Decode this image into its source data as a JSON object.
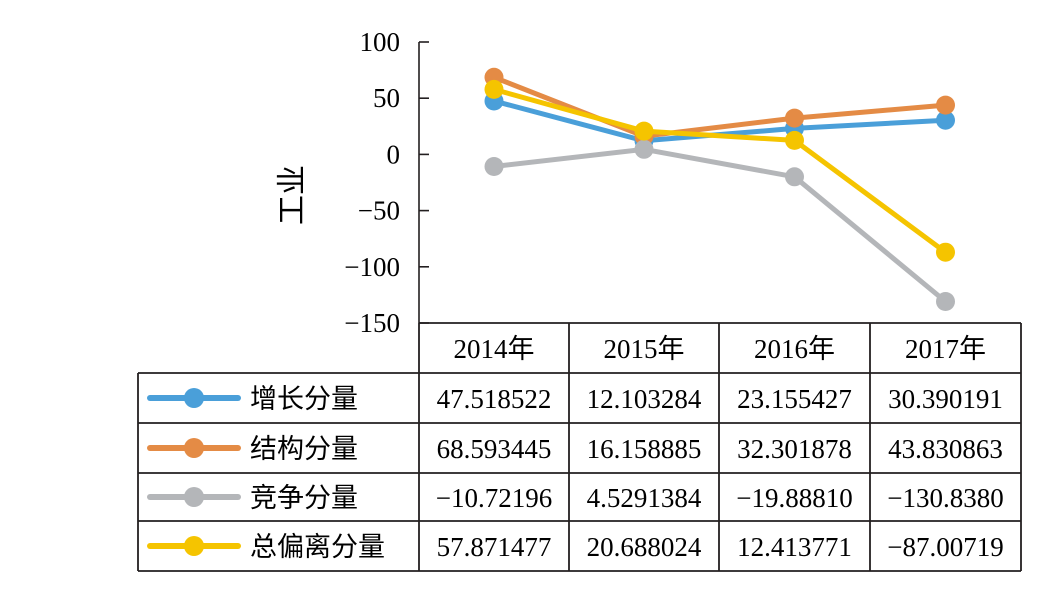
{
  "chart_data": {
    "type": "line",
    "ylabel": "工业",
    "ylim": [
      -150,
      100
    ],
    "yticks": [
      100,
      50,
      0,
      -50,
      -100,
      -150
    ],
    "ytick_labels": [
      "100",
      "50",
      "0",
      "−50",
      "−100",
      "−150"
    ],
    "categories": [
      "2014年",
      "2015年",
      "2016年",
      "2017年"
    ],
    "grid": false,
    "legend": "data-table-left",
    "series": [
      {
        "name": "增长分量",
        "color": "#4a9fd9",
        "values": [
          47.518522,
          12.103284,
          23.155427,
          30.390191
        ],
        "labels": [
          "47.518522",
          "12.103284",
          "23.155427",
          "30.390191"
        ]
      },
      {
        "name": "结构分量",
        "color": "#e48b45",
        "values": [
          68.593445,
          16.158885,
          32.301878,
          43.830863
        ],
        "labels": [
          "68.593445",
          "16.158885",
          "32.301878",
          "43.830863"
        ]
      },
      {
        "name": "竞争分量",
        "color": "#b4b6b9",
        "values": [
          -10.72196,
          4.5291384,
          -19.8881,
          -130.838
        ],
        "labels": [
          "−10.72196",
          "4.5291384",
          "−19.88810",
          "−130.8380"
        ]
      },
      {
        "name": "总偏离分量",
        "color": "#f5c400",
        "values": [
          57.871477,
          20.688024,
          12.413771,
          -87.00719
        ],
        "labels": [
          "57.871477",
          "20.688024",
          "12.413771",
          "−87.00719"
        ]
      }
    ]
  }
}
